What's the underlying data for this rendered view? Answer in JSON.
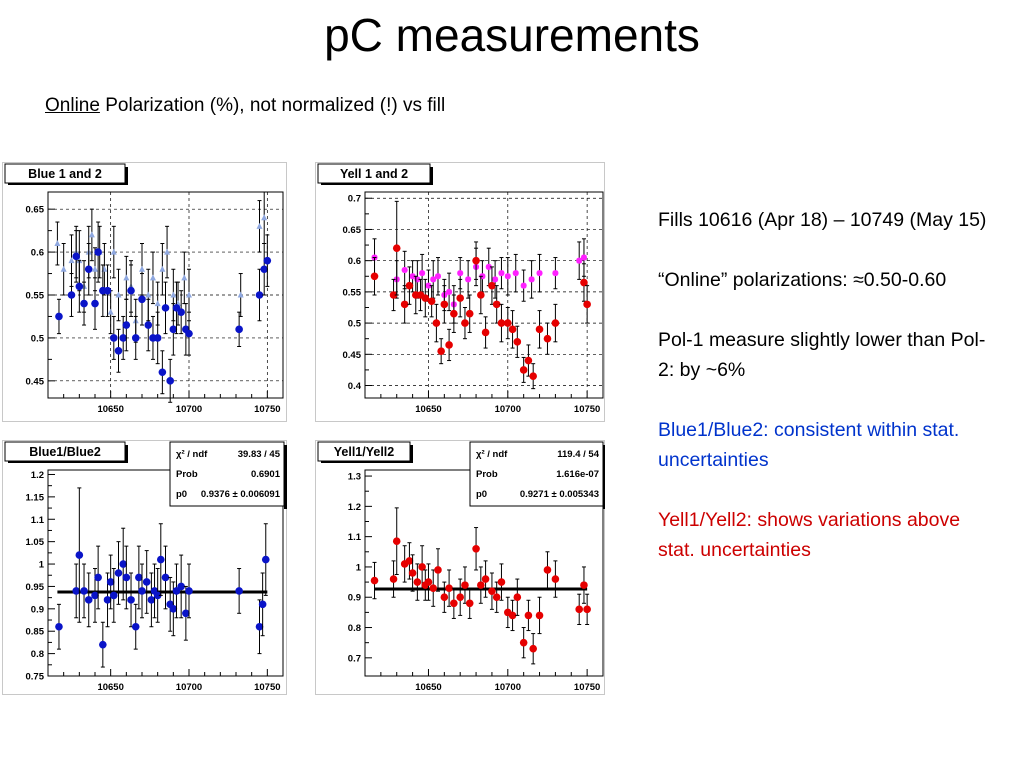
{
  "title": "pC measurements",
  "subtitle": {
    "underlined": "Online",
    "rest": " Polarization (%), not normalized (!) vs fill"
  },
  "notes": {
    "fills": "Fills 10616 (Apr 18) – 10749 (May 15)",
    "online": "“Online” polarizations: ≈0.50-0.60",
    "pol1": "Pol-1 measure slightly lower than Pol-2:  by ~6%",
    "blue_ratio": "Blue1/Blue2: consistent within stat. uncertainties",
    "yell_ratio": "Yell1/Yell2: shows variations above stat. uncertainties"
  },
  "colors": {
    "blue1": "#0a14c8",
    "blue2": "#8fa8e0",
    "yell1": "#e60000",
    "yell2": "#ff20ff",
    "text_blue": "#0033cc",
    "text_red": "#cc0000"
  },
  "chart_data": [
    {
      "id": "blue12",
      "type": "scatter",
      "title": "Blue 1 and 2",
      "xlim": [
        10610,
        10760
      ],
      "ylim": [
        0.43,
        0.67
      ],
      "xticks": [
        10650,
        10700,
        10750
      ],
      "yticks": [
        0.45,
        0.5,
        0.55,
        0.6,
        0.65
      ],
      "yticks_labels": [
        "0.45",
        "0.5",
        "0.55",
        "0.6",
        "0.65"
      ],
      "grid": true,
      "series": [
        {
          "color": "#8fa8e0",
          "marker": "tri",
          "x": [
            10616,
            10620,
            10625,
            10628,
            10630,
            10633,
            10636,
            10638,
            10640,
            10643,
            10646,
            10650,
            10652,
            10655,
            10660,
            10663,
            10666,
            10670,
            10674,
            10677,
            10680,
            10683,
            10686,
            10690,
            10693,
            10697,
            10700,
            10733,
            10745,
            10748
          ],
          "y": [
            0.61,
            0.58,
            0.59,
            0.6,
            0.59,
            0.56,
            0.6,
            0.62,
            0.58,
            0.6,
            0.58,
            0.53,
            0.6,
            0.55,
            0.57,
            0.56,
            0.52,
            0.58,
            0.55,
            0.57,
            0.54,
            0.58,
            0.6,
            0.55,
            0.54,
            0.57,
            0.55,
            0.55,
            0.63,
            0.64
          ],
          "err": [
            0.025,
            0.03,
            0.03,
            0.03,
            0.035,
            0.03,
            0.03,
            0.03,
            0.025,
            0.03,
            0.03,
            0.025,
            0.03,
            0.03,
            0.025,
            0.03,
            0.025,
            0.03,
            0.03,
            0.03,
            0.025,
            0.03,
            0.03,
            0.03,
            0.025,
            0.03,
            0.03,
            0.025,
            0.03,
            0.03
          ]
        },
        {
          "color": "#0a14c8",
          "marker": "circle",
          "x": [
            10617,
            10625,
            10628,
            10630,
            10633,
            10636,
            10640,
            10642,
            10645,
            10648,
            10652,
            10655,
            10658,
            10660,
            10663,
            10666,
            10670,
            10674,
            10677,
            10680,
            10683,
            10685,
            10688,
            10690,
            10692,
            10695,
            10698,
            10700,
            10732,
            10745,
            10748,
            10750
          ],
          "y": [
            0.525,
            0.55,
            0.595,
            0.56,
            0.54,
            0.58,
            0.54,
            0.6,
            0.555,
            0.555,
            0.5,
            0.485,
            0.5,
            0.515,
            0.555,
            0.5,
            0.545,
            0.515,
            0.5,
            0.5,
            0.46,
            0.535,
            0.45,
            0.51,
            0.535,
            0.53,
            0.51,
            0.505,
            0.51,
            0.55,
            0.58,
            0.59
          ],
          "err": [
            0.02,
            0.025,
            0.03,
            0.03,
            0.025,
            0.03,
            0.03,
            0.035,
            0.03,
            0.03,
            0.025,
            0.025,
            0.025,
            0.03,
            0.03,
            0.025,
            0.03,
            0.03,
            0.025,
            0.03,
            0.025,
            0.03,
            0.025,
            0.03,
            0.03,
            0.025,
            0.03,
            0.025,
            0.02,
            0.03,
            0.03,
            0.03
          ]
        }
      ]
    },
    {
      "id": "yell12",
      "type": "scatter",
      "title": "Yell 1 and 2",
      "xlim": [
        10610,
        10760
      ],
      "ylim": [
        0.38,
        0.71
      ],
      "xticks": [
        10650,
        10700,
        10750
      ],
      "yticks": [
        0.4,
        0.45,
        0.5,
        0.55,
        0.6,
        0.65,
        0.7
      ],
      "yticks_labels": [
        "0.4",
        "0.45",
        "0.5",
        "0.55",
        "0.6",
        "0.65",
        "0.7"
      ],
      "grid": true,
      "series": [
        {
          "color": "#ff20ff",
          "marker": "star",
          "x": [
            10616,
            10630,
            10635,
            10640,
            10643,
            10646,
            10650,
            10653,
            10656,
            10660,
            10663,
            10666,
            10670,
            10675,
            10680,
            10684,
            10688,
            10692,
            10696,
            10700,
            10705,
            10710,
            10715,
            10720,
            10730,
            10745,
            10748
          ],
          "y": [
            0.605,
            0.57,
            0.585,
            0.575,
            0.57,
            0.58,
            0.56,
            0.57,
            0.575,
            0.545,
            0.55,
            0.53,
            0.58,
            0.57,
            0.59,
            0.575,
            0.59,
            0.57,
            0.58,
            0.575,
            0.58,
            0.56,
            0.57,
            0.58,
            0.58,
            0.6,
            0.605
          ],
          "err": [
            0.03,
            0.03,
            0.03,
            0.025,
            0.03,
            0.03,
            0.025,
            0.03,
            0.03,
            0.025,
            0.03,
            0.03,
            0.025,
            0.03,
            0.03,
            0.025,
            0.03,
            0.03,
            0.025,
            0.03,
            0.03,
            0.025,
            0.03,
            0.03,
            0.025,
            0.03,
            0.03
          ]
        },
        {
          "color": "#e60000",
          "marker": "circle",
          "x": [
            10616,
            10628,
            10630,
            10635,
            10638,
            10642,
            10645,
            10648,
            10652,
            10655,
            10658,
            10660,
            10663,
            10666,
            10670,
            10673,
            10676,
            10680,
            10683,
            10686,
            10690,
            10693,
            10696,
            10700,
            10703,
            10706,
            10710,
            10713,
            10716,
            10720,
            10725,
            10730,
            10748,
            10750
          ],
          "y": [
            0.575,
            0.545,
            0.62,
            0.53,
            0.56,
            0.545,
            0.545,
            0.54,
            0.535,
            0.5,
            0.455,
            0.53,
            0.465,
            0.515,
            0.54,
            0.5,
            0.515,
            0.6,
            0.545,
            0.485,
            0.56,
            0.53,
            0.5,
            0.5,
            0.49,
            0.47,
            0.425,
            0.44,
            0.415,
            0.49,
            0.475,
            0.5,
            0.565,
            0.53
          ],
          "err": [
            0.03,
            0.025,
            0.075,
            0.03,
            0.03,
            0.03,
            0.025,
            0.03,
            0.025,
            0.03,
            0.02,
            0.03,
            0.025,
            0.03,
            0.03,
            0.025,
            0.03,
            0.03,
            0.03,
            0.025,
            0.03,
            0.03,
            0.03,
            0.025,
            0.03,
            0.025,
            0.02,
            0.025,
            0.02,
            0.03,
            0.025,
            0.03,
            0.03,
            0.03
          ]
        }
      ]
    },
    {
      "id": "blueratio",
      "type": "scatter",
      "title": "Blue1/Blue2",
      "xlim": [
        10610,
        10760
      ],
      "ylim": [
        0.75,
        1.21
      ],
      "xticks": [
        10650,
        10700,
        10750
      ],
      "yticks": [
        0.75,
        0.8,
        0.85,
        0.9,
        0.95,
        1.0,
        1.05,
        1.1,
        1.15,
        1.2
      ],
      "yticks_labels": [
        "0.75",
        "0.8",
        "0.85",
        "0.9",
        "0.95",
        "1",
        "1.05",
        "1.1",
        "1.15",
        "1.2"
      ],
      "grid": false,
      "fit": {
        "value": 0.9376
      },
      "stats": {
        "chi2_label": "χ² / ndf",
        "chi2": "39.83 / 45",
        "prob_label": "Prob",
        "prob": "0.6901",
        "p0_label": "p0",
        "p0": "0.9376 ± 0.006091"
      },
      "series": [
        {
          "color": "#0a14c8",
          "marker": "circle",
          "x": [
            10617,
            10628,
            10630,
            10633,
            10636,
            10640,
            10642,
            10645,
            10648,
            10650,
            10652,
            10655,
            10658,
            10660,
            10663,
            10666,
            10668,
            10670,
            10673,
            10676,
            10678,
            10680,
            10682,
            10685,
            10688,
            10690,
            10692,
            10695,
            10698,
            10700,
            10732,
            10745,
            10747,
            10749
          ],
          "y": [
            0.86,
            0.94,
            1.02,
            0.94,
            0.92,
            0.93,
            0.97,
            0.82,
            0.92,
            0.96,
            0.93,
            0.98,
            1.0,
            0.97,
            0.92,
            0.86,
            0.97,
            0.94,
            0.96,
            0.92,
            0.94,
            0.93,
            1.01,
            0.97,
            0.91,
            0.9,
            0.94,
            0.95,
            0.89,
            0.94,
            0.94,
            0.86,
            0.91,
            1.01
          ],
          "err": [
            0.05,
            0.06,
            0.15,
            0.06,
            0.06,
            0.06,
            0.07,
            0.05,
            0.06,
            0.06,
            0.06,
            0.07,
            0.08,
            0.07,
            0.06,
            0.05,
            0.07,
            0.06,
            0.07,
            0.06,
            0.06,
            0.06,
            0.08,
            0.07,
            0.06,
            0.06,
            0.06,
            0.07,
            0.06,
            0.06,
            0.05,
            0.06,
            0.07,
            0.08
          ]
        }
      ]
    },
    {
      "id": "yellratio",
      "type": "scatter",
      "title": "Yell1/Yell2",
      "xlim": [
        10610,
        10760
      ],
      "ylim": [
        0.64,
        1.32
      ],
      "xticks": [
        10650,
        10700,
        10750
      ],
      "yticks": [
        0.7,
        0.8,
        0.9,
        1.0,
        1.1,
        1.2,
        1.3
      ],
      "yticks_labels": [
        "0.7",
        "0.8",
        "0.9",
        "1",
        "1.1",
        "1.2",
        "1.3"
      ],
      "grid": false,
      "fit": {
        "value": 0.9271
      },
      "stats": {
        "chi2_label": "χ² / ndf",
        "chi2": "119.4 / 54",
        "prob_label": "Prob",
        "prob": "1.616e-07",
        "p0_label": "p0",
        "p0": "0.9271 ± 0.005343"
      },
      "series": [
        {
          "color": "#e60000",
          "marker": "circle",
          "x": [
            10616,
            10628,
            10630,
            10635,
            10638,
            10640,
            10643,
            10646,
            10648,
            10650,
            10653,
            10656,
            10660,
            10663,
            10666,
            10670,
            10673,
            10676,
            10680,
            10683,
            10686,
            10690,
            10693,
            10696,
            10700,
            10703,
            10706,
            10710,
            10713,
            10716,
            10720,
            10725,
            10730,
            10745,
            10748,
            10750
          ],
          "y": [
            0.955,
            0.96,
            1.085,
            1.01,
            1.02,
            0.98,
            0.95,
            1.0,
            0.94,
            0.95,
            0.93,
            0.99,
            0.9,
            0.93,
            0.88,
            0.9,
            0.94,
            0.88,
            1.06,
            0.94,
            0.96,
            0.92,
            0.9,
            0.95,
            0.85,
            0.84,
            0.9,
            0.75,
            0.84,
            0.73,
            0.84,
            0.99,
            0.96,
            0.86,
            0.94,
            0.86
          ],
          "err": [
            0.06,
            0.06,
            0.11,
            0.06,
            0.06,
            0.06,
            0.06,
            0.07,
            0.05,
            0.06,
            0.06,
            0.07,
            0.05,
            0.06,
            0.05,
            0.06,
            0.06,
            0.05,
            0.07,
            0.06,
            0.06,
            0.06,
            0.05,
            0.06,
            0.05,
            0.05,
            0.06,
            0.05,
            0.05,
            0.05,
            0.06,
            0.06,
            0.06,
            0.05,
            0.06,
            0.05
          ]
        }
      ]
    }
  ]
}
